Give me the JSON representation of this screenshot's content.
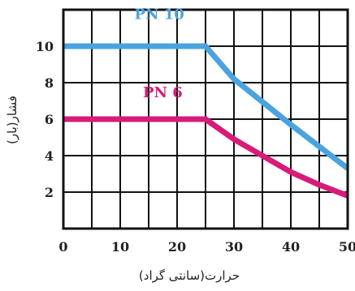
{
  "chart_data": {
    "type": "line",
    "xlabel": "حرارت(سانتی گراد)",
    "ylabel": "فشار(بار)",
    "xlim": [
      0,
      50
    ],
    "ylim": [
      0,
      12
    ],
    "xticks": [
      0,
      10,
      20,
      30,
      40,
      50
    ],
    "yticks": [
      2,
      4,
      6,
      8,
      10
    ],
    "grid": true,
    "series": [
      {
        "name": "PN 10",
        "color": "#4aa3df",
        "x": [
          0,
          25,
          30,
          40,
          50
        ],
        "y": [
          10,
          10,
          8.2,
          5.7,
          3.3
        ]
      },
      {
        "name": "PN 6",
        "color": "#d81b78",
        "x": [
          0,
          25,
          30,
          35,
          40,
          45,
          50
        ],
        "y": [
          6,
          6,
          4.9,
          4.0,
          3.1,
          2.4,
          1.8
        ]
      }
    ]
  }
}
